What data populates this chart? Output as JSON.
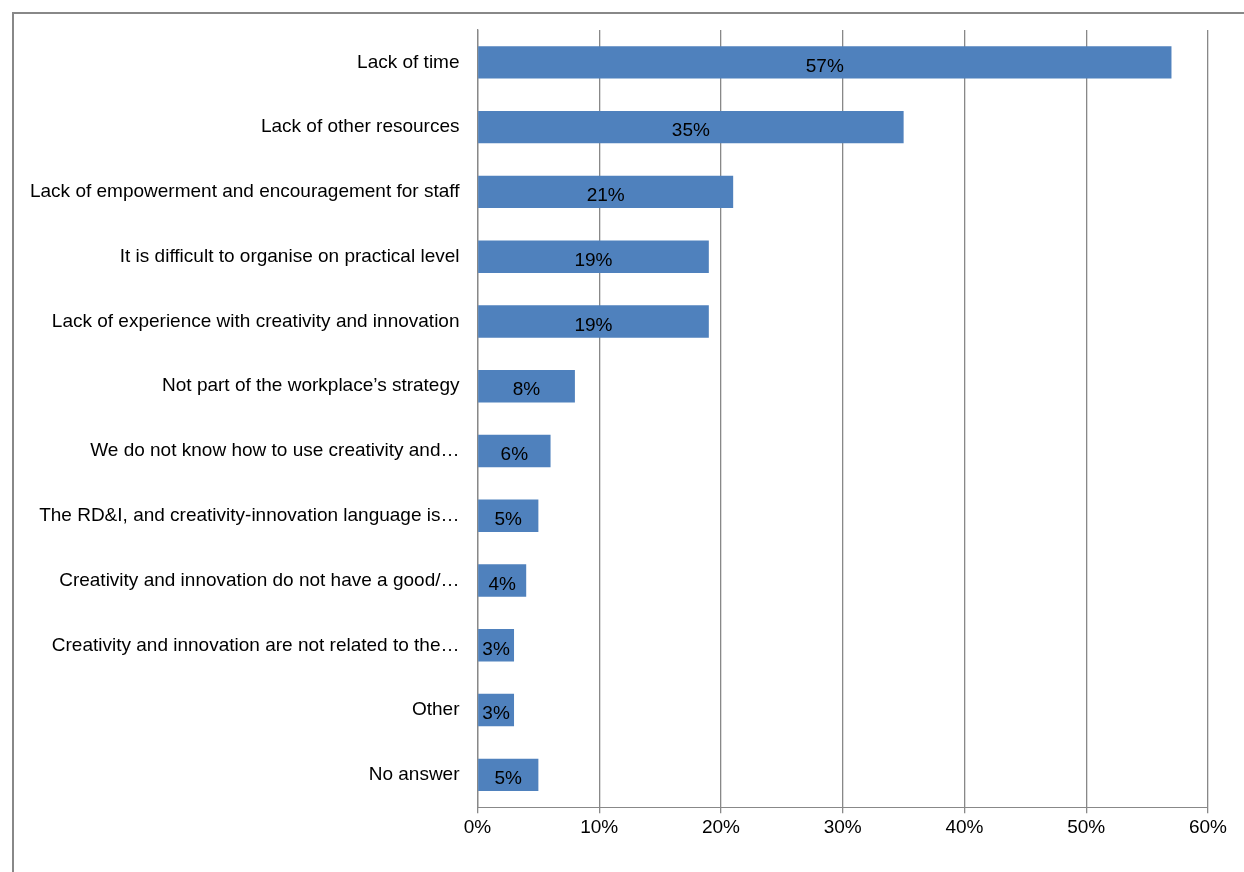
{
  "chart_data": {
    "type": "bar",
    "orientation": "horizontal",
    "categories": [
      "Lack of time",
      "Lack of other resources",
      "Lack of empowerment and encouragement for staff",
      "It is difficult to organise on practical level",
      "Lack of experience with creativity and innovation",
      "Not part of the workplace’s strategy",
      "We do not know how to use creativity and…",
      "The RD&I, and creativity-innovation language is…",
      "Creativity and innovation do not have a good/…",
      "Creativity and innovation are not related to the…",
      "Other",
      "No answer"
    ],
    "values": [
      57,
      35,
      21,
      19,
      19,
      8,
      6,
      5,
      4,
      3,
      3,
      5
    ],
    "value_labels": [
      "57%",
      "35%",
      "21%",
      "19%",
      "19%",
      "8%",
      "6%",
      "5%",
      "4%",
      "3%",
      "3%",
      "5%"
    ],
    "color": "#4f81bd",
    "xlim": [
      0,
      60
    ],
    "xticks": [
      {
        "value": 0,
        "label": "0%"
      },
      {
        "value": 10,
        "label": "10%"
      },
      {
        "value": 20,
        "label": "20%"
      },
      {
        "value": 30,
        "label": "30%"
      },
      {
        "value": 40,
        "label": "40%"
      },
      {
        "value": 50,
        "label": "50%"
      },
      {
        "value": 60,
        "label": "60%"
      }
    ],
    "grid": "x",
    "legend": false
  }
}
